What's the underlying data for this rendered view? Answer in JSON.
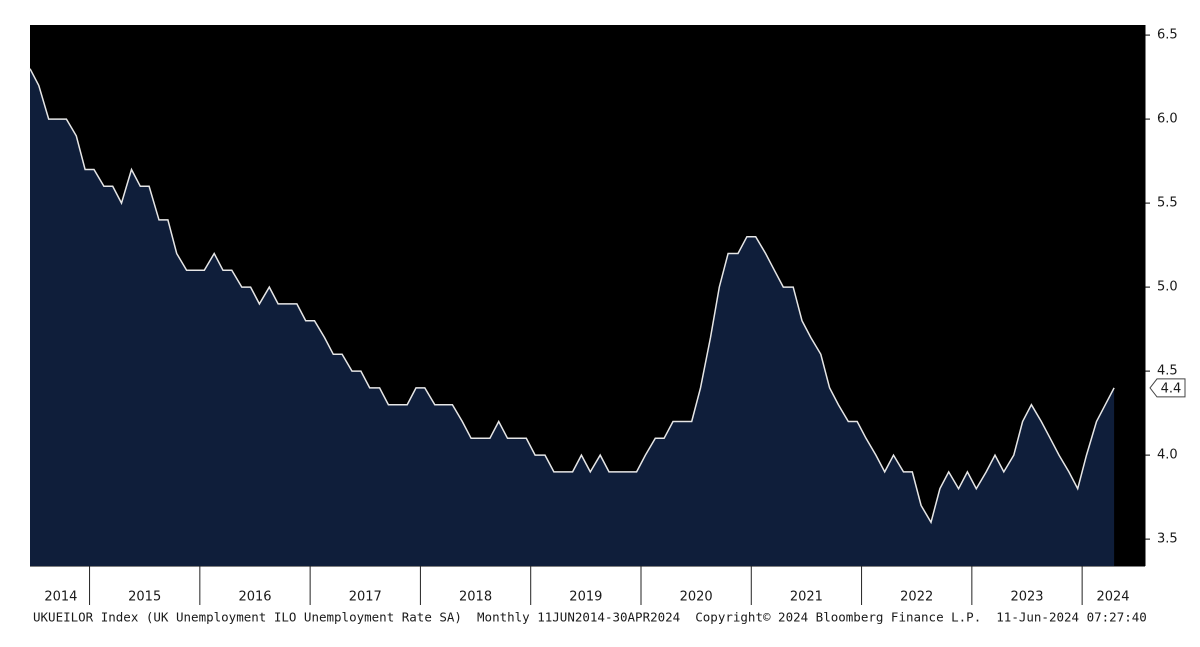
{
  "chart_data": {
    "type": "area",
    "footnote": "UKUEILOR Index (UK Unemployment ILO Unemployment Rate SA)  Monthly 11JUN2014-30APR2024  Copyright© 2024 Bloomberg Finance L.P.  11-Jun-2024 07:27:40",
    "xlim": [
      2014.46,
      2024.57
    ],
    "xticks": [
      {
        "value": 2014.74,
        "label": "2014"
      },
      {
        "value": 2015.5,
        "label": "2015"
      },
      {
        "value": 2016.5,
        "label": "2016"
      },
      {
        "value": 2017.5,
        "label": "2017"
      },
      {
        "value": 2018.5,
        "label": "2018"
      },
      {
        "value": 2019.5,
        "label": "2019"
      },
      {
        "value": 2020.5,
        "label": "2020"
      },
      {
        "value": 2021.5,
        "label": "2021"
      },
      {
        "value": 2022.5,
        "label": "2022"
      },
      {
        "value": 2023.5,
        "label": "2023"
      },
      {
        "value": 2024.28,
        "label": "2024"
      }
    ],
    "ylim": [
      3.34,
      6.56
    ],
    "yticks": [
      3.5,
      {
        "value": 4,
        "label": "4.0"
      },
      4.5,
      {
        "value": 5,
        "label": "5.0"
      },
      5.5,
      {
        "value": 6,
        "label": "6.0"
      },
      6.5
    ],
    "series": [
      {
        "color": "#e6e6e6",
        "fill": "#0f1e3a",
        "x": [
          2014.46,
          2014.54,
          2014.63,
          2014.71,
          2014.79,
          2014.88,
          2014.96,
          2015.04,
          2015.13,
          2015.21,
          2015.29,
          2015.38,
          2015.46,
          2015.54,
          2015.63,
          2015.71,
          2015.79,
          2015.88,
          2015.96,
          2016.04,
          2016.13,
          2016.21,
          2016.29,
          2016.38,
          2016.46,
          2016.54,
          2016.63,
          2016.71,
          2016.79,
          2016.88,
          2016.96,
          2017.04,
          2017.13,
          2017.21,
          2017.29,
          2017.38,
          2017.46,
          2017.54,
          2017.63,
          2017.71,
          2017.79,
          2017.88,
          2017.96,
          2018.04,
          2018.13,
          2018.21,
          2018.29,
          2018.38,
          2018.46,
          2018.54,
          2018.63,
          2018.71,
          2018.79,
          2018.88,
          2018.96,
          2019.04,
          2019.13,
          2019.21,
          2019.29,
          2019.38,
          2019.46,
          2019.54,
          2019.63,
          2019.71,
          2019.79,
          2019.88,
          2019.96,
          2020.04,
          2020.13,
          2020.21,
          2020.29,
          2020.38,
          2020.46,
          2020.54,
          2020.63,
          2020.71,
          2020.79,
          2020.88,
          2020.96,
          2021.04,
          2021.13,
          2021.21,
          2021.29,
          2021.38,
          2021.46,
          2021.54,
          2021.63,
          2021.71,
          2021.79,
          2021.88,
          2021.96,
          2022.04,
          2022.13,
          2022.21,
          2022.29,
          2022.38,
          2022.46,
          2022.54,
          2022.63,
          2022.71,
          2022.79,
          2022.88,
          2022.96,
          2023.04,
          2023.13,
          2023.21,
          2023.29,
          2023.38,
          2023.46,
          2023.54,
          2023.63,
          2023.71,
          2023.79,
          2023.88,
          2023.96,
          2024.04,
          2024.13,
          2024.21,
          2024.29
        ],
        "values": [
          6.3,
          6.2,
          6.0,
          6.0,
          6.0,
          5.9,
          5.7,
          5.7,
          5.6,
          5.6,
          5.5,
          5.7,
          5.6,
          5.6,
          5.4,
          5.4,
          5.2,
          5.1,
          5.1,
          5.1,
          5.2,
          5.1,
          5.1,
          5.0,
          5.0,
          4.9,
          5.0,
          4.9,
          4.9,
          4.9,
          4.8,
          4.8,
          4.7,
          4.6,
          4.6,
          4.5,
          4.5,
          4.4,
          4.4,
          4.3,
          4.3,
          4.3,
          4.4,
          4.4,
          4.3,
          4.3,
          4.3,
          4.2,
          4.1,
          4.1,
          4.1,
          4.2,
          4.1,
          4.1,
          4.1,
          4.0,
          4.0,
          3.9,
          3.9,
          3.9,
          4.0,
          3.9,
          4.0,
          3.9,
          3.9,
          3.9,
          3.9,
          4.0,
          4.1,
          4.1,
          4.2,
          4.2,
          4.2,
          4.4,
          4.7,
          5.0,
          5.2,
          5.2,
          5.3,
          5.3,
          5.2,
          5.1,
          5.0,
          5.0,
          4.8,
          4.7,
          4.6,
          4.4,
          4.3,
          4.2,
          4.2,
          4.1,
          4.0,
          3.9,
          4.0,
          3.9,
          3.9,
          3.7,
          3.6,
          3.8,
          3.9,
          3.8,
          3.9,
          3.8,
          3.9,
          4.0,
          3.9,
          4.0,
          4.2,
          4.3,
          4.2,
          4.1,
          4.0,
          3.9,
          3.8,
          4.0,
          4.2,
          4.3,
          4.4
        ]
      }
    ]
  }
}
